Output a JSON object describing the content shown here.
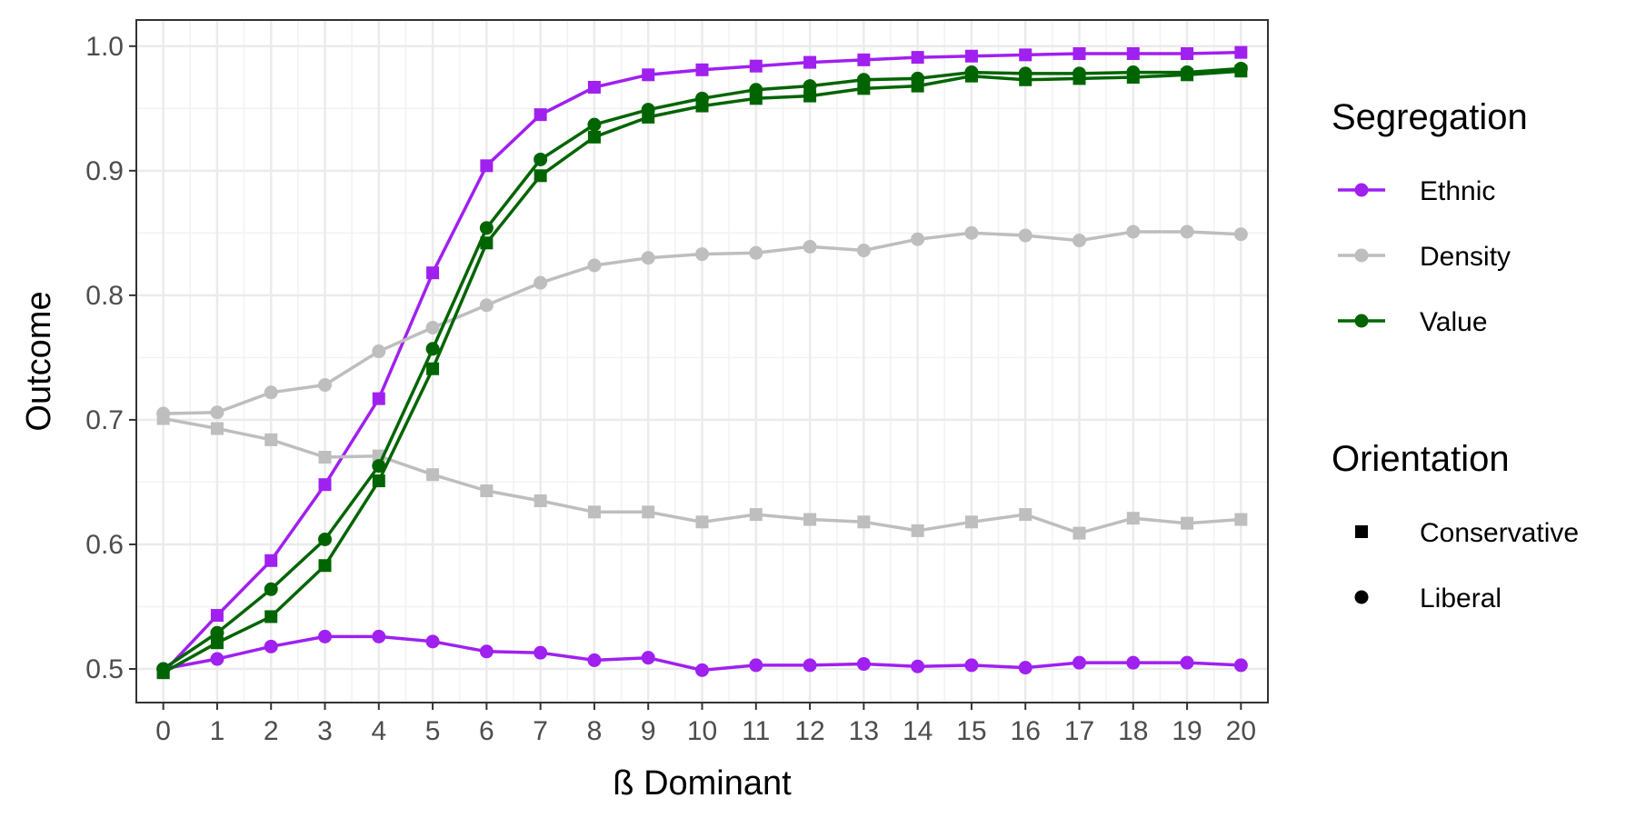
{
  "chart_data": {
    "type": "line",
    "xlabel": "ß Dominant",
    "ylabel": "Outcome",
    "x": [
      0,
      1,
      2,
      3,
      4,
      5,
      6,
      7,
      8,
      9,
      10,
      11,
      12,
      13,
      14,
      15,
      16,
      17,
      18,
      19,
      20
    ],
    "xlim": [
      -0.5,
      20.5
    ],
    "ylim": [
      0.473,
      1.021
    ],
    "y_ticks": [
      0.5,
      0.6,
      0.7,
      0.8,
      0.9,
      1.0
    ],
    "y_tick_labels": [
      "0.5",
      "0.6",
      "0.7",
      "0.8",
      "0.9",
      "1.0"
    ],
    "grid": true,
    "legend_position": "right",
    "series": [
      {
        "segregation": "Ethnic",
        "orientation": "Conservative",
        "color": "#a020f0",
        "shape": "square",
        "values": [
          0.497,
          0.543,
          0.587,
          0.648,
          0.717,
          0.818,
          0.904,
          0.945,
          0.967,
          0.977,
          0.981,
          0.984,
          0.987,
          0.989,
          0.991,
          0.992,
          0.993,
          0.994,
          0.994,
          0.994,
          0.995
        ]
      },
      {
        "segregation": "Ethnic",
        "orientation": "Liberal",
        "color": "#a020f0",
        "shape": "circle",
        "values": [
          0.5,
          0.508,
          0.518,
          0.526,
          0.526,
          0.522,
          0.514,
          0.513,
          0.507,
          0.509,
          0.499,
          0.503,
          0.503,
          0.504,
          0.502,
          0.503,
          0.501,
          0.505,
          0.505,
          0.505,
          0.503
        ]
      },
      {
        "segregation": "Density",
        "orientation": "Conservative",
        "color": "#bebebe",
        "shape": "square",
        "values": [
          0.701,
          0.693,
          0.684,
          0.67,
          0.671,
          0.656,
          0.643,
          0.635,
          0.626,
          0.626,
          0.618,
          0.624,
          0.62,
          0.618,
          0.611,
          0.618,
          0.624,
          0.609,
          0.621,
          0.617,
          0.62
        ]
      },
      {
        "segregation": "Density",
        "orientation": "Liberal",
        "color": "#bebebe",
        "shape": "circle",
        "values": [
          0.705,
          0.706,
          0.722,
          0.728,
          0.755,
          0.774,
          0.792,
          0.81,
          0.824,
          0.83,
          0.833,
          0.834,
          0.839,
          0.836,
          0.845,
          0.85,
          0.848,
          0.844,
          0.851,
          0.851,
          0.849
        ]
      },
      {
        "segregation": "Value",
        "orientation": "Conservative",
        "color": "#006400",
        "shape": "square",
        "values": [
          0.497,
          0.521,
          0.542,
          0.583,
          0.651,
          0.741,
          0.842,
          0.896,
          0.927,
          0.943,
          0.952,
          0.958,
          0.96,
          0.966,
          0.968,
          0.976,
          0.973,
          0.974,
          0.975,
          0.977,
          0.98
        ]
      },
      {
        "segregation": "Value",
        "orientation": "Liberal",
        "color": "#006400",
        "shape": "circle",
        "values": [
          0.5,
          0.529,
          0.564,
          0.604,
          0.663,
          0.757,
          0.854,
          0.909,
          0.937,
          0.949,
          0.958,
          0.965,
          0.968,
          0.973,
          0.974,
          0.979,
          0.978,
          0.978,
          0.979,
          0.979,
          0.982
        ]
      }
    ],
    "legend": {
      "segregation_title": "Segregation",
      "segregation_items": [
        {
          "label": "Ethnic",
          "color": "#a020f0"
        },
        {
          "label": "Density",
          "color": "#bebebe"
        },
        {
          "label": "Value",
          "color": "#006400"
        }
      ],
      "orientation_title": "Orientation",
      "orientation_items": [
        {
          "label": "Conservative",
          "shape": "square"
        },
        {
          "label": "Liberal",
          "shape": "circle"
        }
      ]
    }
  }
}
